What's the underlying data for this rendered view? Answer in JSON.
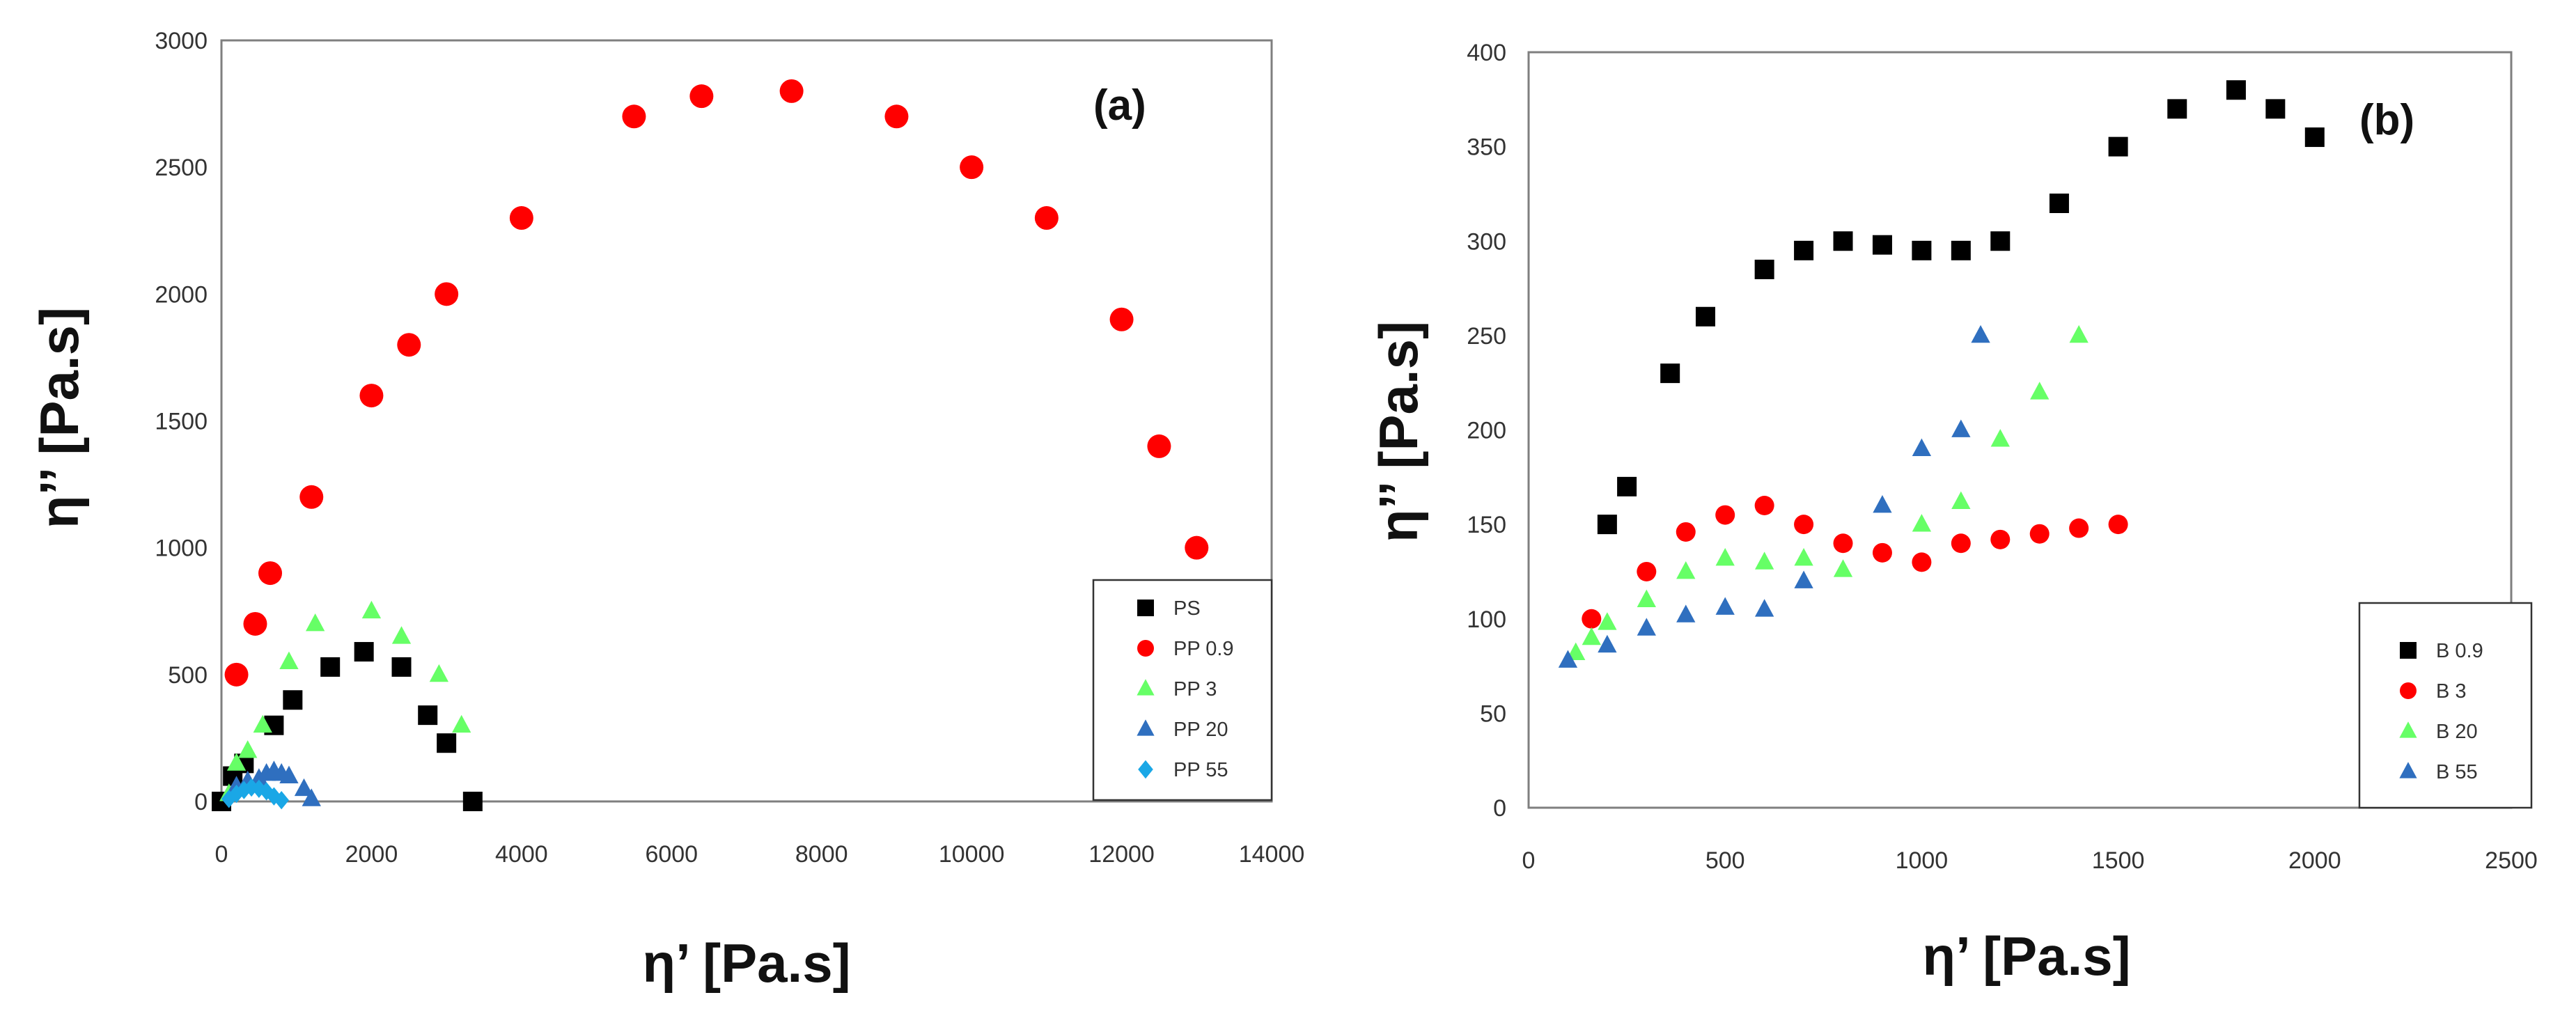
{
  "chart_data": [
    {
      "type": "scatter",
      "panel_label": "(a)",
      "xlabel": "η’ [Pa.s]",
      "ylabel": "η’’ [Pa.s]",
      "xlim": [
        0,
        14000
      ],
      "ylim": [
        0,
        3000
      ],
      "x_ticks": [
        0,
        2000,
        4000,
        6000,
        8000,
        10000,
        12000,
        14000
      ],
      "y_ticks": [
        0,
        500,
        1000,
        1500,
        2000,
        2500,
        3000
      ],
      "legend_position": "bottom-right",
      "series": [
        {
          "name": "PS",
          "marker": "square",
          "color": "#000000",
          "x": [
            0,
            150,
            300,
            700,
            950,
            1450,
            1900,
            2400,
            2750,
            3000,
            3350
          ],
          "y": [
            0,
            100,
            150,
            300,
            400,
            530,
            590,
            530,
            340,
            230,
            0
          ]
        },
        {
          "name": "PP 0.9",
          "marker": "circle",
          "color": "#ff0000",
          "x": [
            200,
            450,
            650,
            1200,
            2000,
            2500,
            3000,
            4000,
            5500,
            6400,
            7600,
            9000,
            10000,
            11000,
            12000,
            12500,
            13000
          ],
          "y": [
            500,
            700,
            900,
            1200,
            1600,
            1800,
            2000,
            2300,
            2700,
            2780,
            2800,
            2700,
            2500,
            2300,
            1900,
            1400,
            1000
          ]
        },
        {
          "name": "PP 3",
          "marker": "triangle",
          "color": "#66ff66",
          "x": [
            100,
            200,
            350,
            550,
            900,
            1250,
            2000,
            2400,
            2900,
            3200
          ],
          "y": [
            30,
            150,
            200,
            300,
            550,
            700,
            750,
            650,
            500,
            300
          ]
        },
        {
          "name": "PP 20",
          "marker": "triangle",
          "color": "#2f6fbf",
          "x": [
            200,
            350,
            500,
            600,
            700,
            800,
            900,
            1100,
            1200
          ],
          "y": [
            60,
            80,
            90,
            110,
            120,
            110,
            100,
            50,
            10
          ]
        },
        {
          "name": "PP 55",
          "marker": "diamond",
          "color": "#1aa7e6",
          "x": [
            100,
            200,
            300,
            400,
            500,
            600,
            700,
            800
          ],
          "y": [
            10,
            30,
            45,
            55,
            50,
            40,
            20,
            5
          ]
        }
      ]
    },
    {
      "type": "scatter",
      "panel_label": "(b)",
      "xlabel": "η’ [Pa.s]",
      "ylabel": "η’’ [Pa.s]",
      "xlim": [
        0,
        2500
      ],
      "ylim": [
        0,
        400
      ],
      "x_ticks": [
        0,
        500,
        1000,
        1500,
        2000,
        2500
      ],
      "y_ticks": [
        0,
        50,
        100,
        150,
        200,
        250,
        300,
        350,
        400
      ],
      "legend_position": "bottom-right",
      "series": [
        {
          "name": "B 0.9",
          "marker": "square",
          "color": "#000000",
          "x": [
            200,
            250,
            360,
            450,
            600,
            700,
            800,
            900,
            1000,
            1100,
            1200,
            1350,
            1500,
            1650,
            1800,
            1900,
            2000
          ],
          "y": [
            150,
            170,
            230,
            260,
            285,
            295,
            300,
            298,
            295,
            295,
            300,
            320,
            350,
            370,
            380,
            370,
            355
          ]
        },
        {
          "name": "B 3",
          "marker": "circle",
          "color": "#ff0000",
          "x": [
            160,
            300,
            400,
            500,
            600,
            700,
            800,
            900,
            1000,
            1100,
            1200,
            1300,
            1400,
            1500
          ],
          "y": [
            100,
            125,
            146,
            155,
            160,
            150,
            140,
            135,
            130,
            140,
            142,
            145,
            148,
            150
          ]
        },
        {
          "name": "B 20",
          "marker": "triangle",
          "color": "#66ff66",
          "x": [
            120,
            160,
            200,
            300,
            400,
            500,
            600,
            700,
            800,
            1000,
            1100,
            1200,
            1300,
            1400
          ],
          "y": [
            82,
            90,
            98,
            110,
            125,
            132,
            130,
            132,
            126,
            150,
            162,
            195,
            220,
            250
          ]
        },
        {
          "name": "B 55",
          "marker": "triangle",
          "color": "#2f6fbf",
          "x": [
            100,
            200,
            300,
            400,
            500,
            600,
            700,
            900,
            1000,
            1100,
            1150
          ],
          "y": [
            78,
            86,
            95,
            102,
            106,
            105,
            120,
            160,
            190,
            200,
            250
          ]
        }
      ]
    }
  ]
}
